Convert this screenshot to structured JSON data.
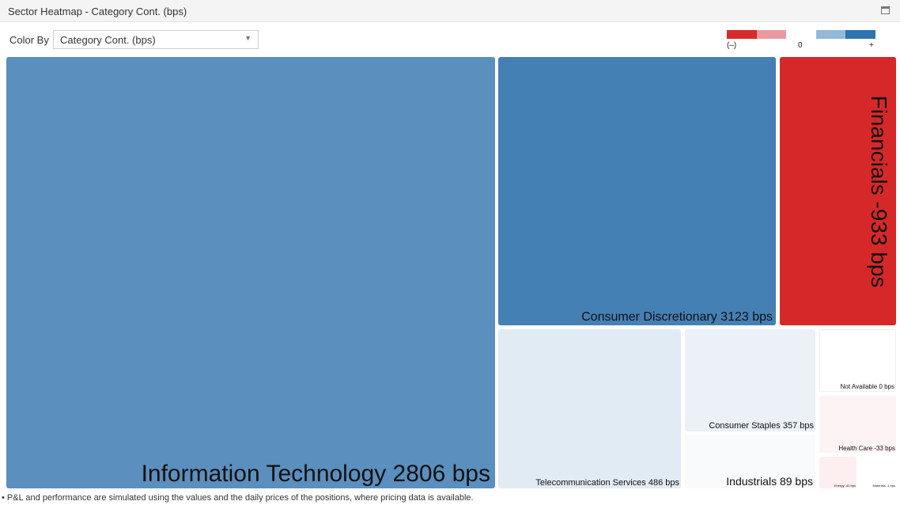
{
  "window": {
    "title": "Sector Heatmap - Category Cont. (bps)"
  },
  "controls": {
    "color_by_label": "Color By",
    "color_by_value": "Category Cont. (bps)"
  },
  "legend": {
    "colors": [
      "#d42b2b",
      "#e89a9f",
      "#ffffff",
      "#93b9d8",
      "#2e74b0"
    ],
    "labels": {
      "negative": "(–)",
      "zero": "0",
      "positive": "+"
    }
  },
  "colors": {
    "strong_blue": "#4580b4",
    "medium_blue": "#5a8fbe",
    "strong_red": "#d62828"
  },
  "sectors": [
    {
      "name": "Information Technology",
      "value": 2806,
      "unit": "bps",
      "label": "Information Technology 2806 bps",
      "color": "#5a8fbe"
    },
    {
      "name": "Consumer Discretionary",
      "value": 3123,
      "unit": "bps",
      "label": "Consumer Discretionary 3123 bps",
      "color": "#4580b4"
    },
    {
      "name": "Financials",
      "value": -933,
      "unit": "bps",
      "label": "Financials -933 bps",
      "color": "#d62828"
    },
    {
      "name": "Telecommunication Services",
      "value": 486,
      "unit": "bps",
      "label": "Telecommunication Services 486 bps",
      "color": "#e1ebf3"
    },
    {
      "name": "Consumer Staples",
      "value": 357,
      "unit": "bps",
      "label": "Consumer Staples 357 bps",
      "color": "#ebf1f7"
    },
    {
      "name": "Industrials",
      "value": 89,
      "unit": "bps",
      "label": "Industrials 89 bps",
      "color": "#f8fafc"
    },
    {
      "name": "Not Available",
      "value": 0,
      "unit": "bps",
      "label": "Not Available 0 bps",
      "color": "#ffffff"
    },
    {
      "name": "Health Care",
      "value": -33,
      "unit": "bps",
      "label": "Health Care -33 bps",
      "color": "#fdf3f4"
    },
    {
      "name": "Energy",
      "value": -40,
      "unit": "bps",
      "label": "Energy -40 bps",
      "color": "#fdeef0"
    },
    {
      "name": "Materials",
      "value": -1,
      "unit": "bps",
      "label": "Materials -1 bps",
      "color": "#ffffff"
    }
  ],
  "footnote": "• P&L and performance are simulated using the values and the daily prices of the positions, where pricing data is available."
}
